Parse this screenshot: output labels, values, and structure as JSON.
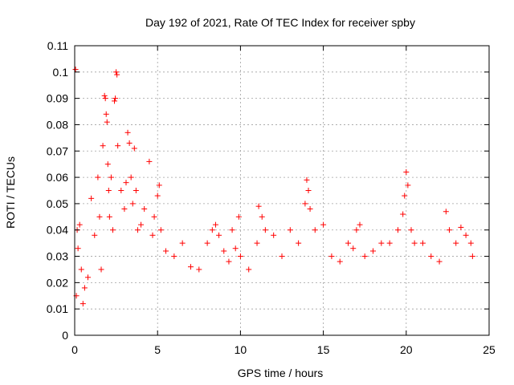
{
  "chart_data": {
    "type": "scatter",
    "title": "Day 192 of 2021, Rate Of TEC Index for receiver spby",
    "xlabel": "GPS time / hours",
    "ylabel": "ROTI / TECUs",
    "xlim": [
      0,
      25
    ],
    "ylim": [
      0,
      0.11
    ],
    "xticks": [
      0,
      5,
      10,
      15,
      20,
      25
    ],
    "xtick_labels": [
      "0",
      "5",
      "10",
      "15",
      "20",
      "25"
    ],
    "yticks": [
      0,
      0.01,
      0.02,
      0.03,
      0.04,
      0.05,
      0.06,
      0.07,
      0.08,
      0.09,
      0.1,
      0.11
    ],
    "ytick_labels": [
      "0",
      "0.01",
      "0.02",
      "0.03",
      "0.04",
      "0.05",
      "0.06",
      "0.07",
      "0.08",
      "0.09",
      "0.1",
      "0.11"
    ],
    "grid": true,
    "marker": "+",
    "marker_color": "#ff0000",
    "series": [
      {
        "name": "ROTI",
        "x": [
          0.05,
          0.1,
          0.15,
          0.2,
          0.3,
          0.4,
          0.5,
          0.6,
          0.8,
          1.0,
          1.2,
          1.4,
          1.5,
          1.6,
          1.7,
          1.8,
          1.85,
          1.9,
          1.95,
          2.0,
          2.05,
          2.1,
          2.2,
          2.3,
          2.4,
          2.45,
          2.5,
          2.55,
          2.6,
          2.8,
          3.0,
          3.1,
          3.2,
          3.3,
          3.4,
          3.5,
          3.6,
          3.7,
          3.8,
          4.0,
          4.2,
          4.5,
          4.7,
          4.8,
          5.0,
          5.1,
          5.2,
          5.5,
          6.0,
          6.5,
          7.0,
          7.5,
          8.0,
          8.3,
          8.5,
          8.7,
          9.0,
          9.3,
          9.5,
          9.7,
          9.9,
          10.0,
          10.5,
          11.0,
          11.1,
          11.3,
          11.5,
          12.0,
          12.5,
          13.0,
          13.5,
          13.9,
          14.0,
          14.1,
          14.2,
          14.5,
          15.0,
          15.5,
          16.0,
          16.5,
          16.8,
          17.0,
          17.2,
          17.5,
          18.0,
          18.5,
          19.0,
          19.5,
          19.8,
          19.9,
          20.0,
          20.1,
          20.3,
          20.5,
          21.0,
          21.5,
          22.0,
          22.4,
          22.6,
          23.0,
          23.3,
          23.6,
          23.9,
          24.0
        ],
        "values": [
          0.101,
          0.015,
          0.04,
          0.033,
          0.042,
          0.025,
          0.012,
          0.018,
          0.022,
          0.052,
          0.038,
          0.06,
          0.045,
          0.025,
          0.072,
          0.091,
          0.09,
          0.084,
          0.081,
          0.065,
          0.055,
          0.045,
          0.06,
          0.04,
          0.089,
          0.09,
          0.1,
          0.099,
          0.072,
          0.055,
          0.048,
          0.058,
          0.077,
          0.073,
          0.06,
          0.05,
          0.071,
          0.055,
          0.04,
          0.042,
          0.048,
          0.066,
          0.038,
          0.045,
          0.053,
          0.057,
          0.04,
          0.032,
          0.03,
          0.035,
          0.026,
          0.025,
          0.035,
          0.04,
          0.042,
          0.038,
          0.032,
          0.028,
          0.04,
          0.033,
          0.045,
          0.03,
          0.025,
          0.035,
          0.049,
          0.045,
          0.04,
          0.038,
          0.03,
          0.04,
          0.035,
          0.05,
          0.059,
          0.055,
          0.048,
          0.04,
          0.042,
          0.03,
          0.028,
          0.035,
          0.033,
          0.04,
          0.042,
          0.03,
          0.032,
          0.035,
          0.035,
          0.04,
          0.046,
          0.053,
          0.062,
          0.057,
          0.04,
          0.035,
          0.035,
          0.03,
          0.028,
          0.047,
          0.04,
          0.035,
          0.041,
          0.038,
          0.035,
          0.03
        ]
      }
    ]
  }
}
